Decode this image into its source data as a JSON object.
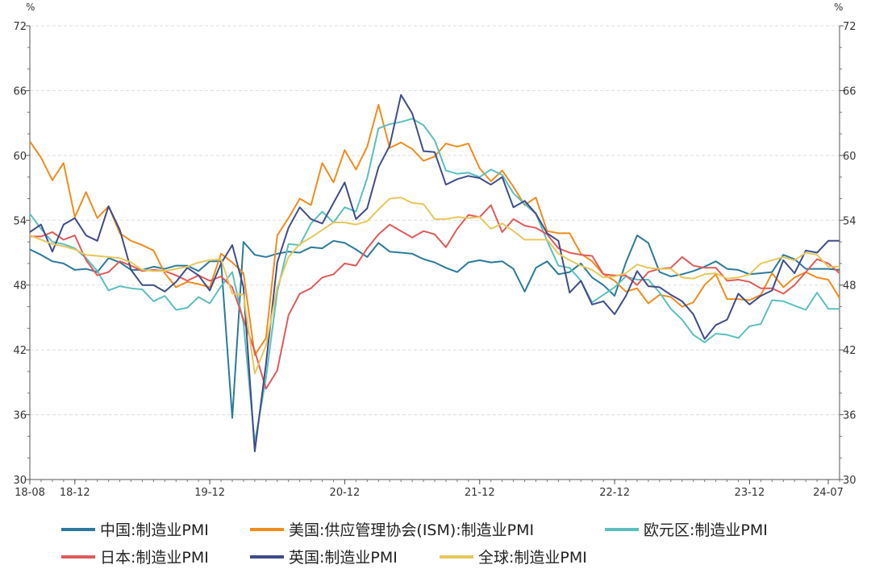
{
  "chart_data": {
    "type": "line",
    "title": "",
    "xlabel": "",
    "ylabel": "",
    "unit_left": "%",
    "unit_right": "%",
    "ylim": [
      30,
      72
    ],
    "y_ticks": [
      30,
      36,
      42,
      48,
      54,
      60,
      66,
      72
    ],
    "x_ticks": [
      "18-08",
      "18-12",
      "19-12",
      "20-12",
      "21-12",
      "22-12",
      "23-12",
      "24-07"
    ],
    "x_start": "2018-08",
    "x_end": "2024-07",
    "grid": "horizontal dashed",
    "legend_position": "bottom",
    "series": [
      {
        "name": "中国:制造业PMI",
        "color": "#2a7a9b",
        "values": [
          51.3,
          50.8,
          50.2,
          50.0,
          49.4,
          49.5,
          49.2,
          50.5,
          50.1,
          49.4,
          49.4,
          49.7,
          49.5,
          49.8,
          49.8,
          49.3,
          50.2,
          50.2,
          35.7,
          52.0,
          50.8,
          50.6,
          50.9,
          51.1,
          51.0,
          51.5,
          51.4,
          52.1,
          51.9,
          51.3,
          50.6,
          51.9,
          51.1,
          51.0,
          50.9,
          50.4,
          50.1,
          49.6,
          49.2,
          50.1,
          50.3,
          50.1,
          50.2,
          49.5,
          47.4,
          49.6,
          50.2,
          49.0,
          49.2,
          50.0,
          48.7,
          48.0,
          47.0,
          50.1,
          52.6,
          51.9,
          49.2,
          48.8,
          49.0,
          49.3,
          49.7,
          50.2,
          49.5,
          49.4,
          49.0,
          49.1,
          49.2,
          50.8,
          50.4,
          49.5,
          49.5,
          49.5,
          49.4
        ],
        "name_note": ""
      },
      {
        "name": "美国:供应管理协会(ISM):制造业PMI",
        "color": "#f08c1c",
        "values": [
          61.3,
          59.8,
          57.7,
          59.3,
          54.3,
          56.6,
          54.2,
          55.3,
          52.8,
          52.1,
          51.7,
          51.2,
          49.1,
          47.8,
          48.3,
          48.1,
          47.8,
          50.9,
          50.1,
          49.1,
          41.5,
          43.1,
          52.6,
          54.2,
          56.0,
          55.4,
          59.3,
          57.5,
          60.5,
          58.7,
          60.8,
          64.7,
          60.7,
          61.2,
          60.6,
          59.5,
          59.9,
          61.1,
          60.8,
          61.1,
          58.8,
          57.6,
          58.6,
          57.1,
          55.4,
          56.1,
          53.0,
          52.8,
          52.8,
          50.9,
          50.2,
          49.0,
          48.4,
          47.4,
          47.7,
          46.3,
          47.1,
          46.9,
          46.0,
          46.4,
          48.0,
          49.0,
          46.7,
          46.7,
          46.6,
          47.1,
          49.1,
          47.8,
          48.7,
          49.2,
          48.7,
          48.5,
          46.8
        ]
      },
      {
        "name": "欧元区:制造业PMI",
        "color": "#5bbfbe",
        "values": [
          54.6,
          53.2,
          52.0,
          51.8,
          51.4,
          50.5,
          49.3,
          47.5,
          47.9,
          47.7,
          47.6,
          46.5,
          47.0,
          45.7,
          45.9,
          46.9,
          46.3,
          47.9,
          49.2,
          44.5,
          33.4,
          39.4,
          47.4,
          51.8,
          51.7,
          53.7,
          54.8,
          53.8,
          55.2,
          54.8,
          57.9,
          62.5,
          62.9,
          63.1,
          63.4,
          62.8,
          61.4,
          58.6,
          58.3,
          58.4,
          58.0,
          58.7,
          58.2,
          56.5,
          55.5,
          54.6,
          52.1,
          49.8,
          49.6,
          48.4,
          46.4,
          47.1,
          47.8,
          48.8,
          48.5,
          48.5,
          47.3,
          45.8,
          44.8,
          43.4,
          42.7,
          43.5,
          43.4,
          43.1,
          44.2,
          44.4,
          46.6,
          46.5,
          46.1,
          45.7,
          47.3,
          45.8,
          45.8
        ]
      },
      {
        "name": "日本:制造业PMI",
        "color": "#e05a5a",
        "values": [
          52.5,
          52.5,
          52.9,
          52.2,
          52.6,
          50.3,
          48.9,
          49.2,
          50.2,
          49.8,
          49.3,
          49.4,
          49.3,
          48.9,
          48.4,
          48.9,
          48.4,
          48.8,
          47.8,
          44.8,
          41.9,
          38.4,
          40.1,
          45.2,
          47.2,
          47.7,
          48.7,
          49.0,
          50.0,
          49.8,
          51.4,
          52.7,
          53.6,
          53.0,
          52.4,
          53.0,
          52.7,
          51.5,
          53.2,
          54.5,
          54.3,
          55.4,
          52.9,
          54.1,
          53.5,
          53.3,
          52.7,
          51.4,
          51.0,
          50.8,
          50.7,
          49.0,
          48.9,
          48.9,
          48.0,
          49.2,
          49.5,
          49.6,
          50.6,
          49.8,
          49.6,
          49.6,
          48.4,
          48.5,
          48.3,
          47.7,
          47.7,
          47.2,
          48.0,
          49.2,
          50.4,
          50.0,
          49.1
        ]
      },
      {
        "name": "英国:制造业PMI",
        "color": "#3f4c8a",
        "values": [
          52.9,
          53.6,
          51.1,
          53.6,
          54.2,
          52.6,
          52.1,
          55.3,
          53.1,
          49.4,
          48.0,
          48.0,
          47.4,
          48.3,
          49.6,
          48.9,
          47.5,
          50.0,
          51.7,
          47.8,
          32.6,
          40.7,
          50.1,
          53.3,
          55.2,
          54.1,
          53.7,
          55.6,
          57.5,
          54.1,
          55.1,
          58.9,
          60.9,
          65.6,
          63.9,
          60.4,
          60.3,
          57.3,
          57.8,
          58.1,
          57.9,
          57.3,
          58.0,
          55.2,
          55.8,
          54.6,
          52.8,
          52.1,
          47.3,
          48.4,
          46.2,
          46.5,
          45.3,
          47.0,
          49.3,
          47.9,
          47.8,
          47.1,
          46.5,
          45.3,
          43.0,
          44.3,
          44.8,
          47.2,
          46.2,
          47.0,
          47.5,
          50.3,
          49.1,
          51.2,
          51.0,
          52.1,
          52.1
        ]
      },
      {
        "name": "全球:制造业PMI",
        "color": "#e6c75a",
        "values": [
          52.6,
          52.2,
          51.8,
          51.6,
          51.3,
          50.8,
          50.7,
          50.6,
          50.5,
          50.1,
          49.4,
          49.3,
          49.3,
          49.5,
          49.7,
          50.1,
          50.3,
          50.4,
          47.2,
          47.1,
          39.8,
          42.4,
          47.8,
          50.6,
          51.8,
          52.4,
          53.1,
          53.8,
          53.8,
          53.6,
          53.9,
          55.0,
          56.0,
          56.1,
          55.6,
          55.5,
          54.1,
          54.1,
          54.3,
          54.2,
          54.3,
          53.2,
          53.7,
          53.0,
          52.2,
          52.2,
          52.2,
          50.9,
          50.3,
          49.8,
          49.4,
          48.7,
          48.8,
          49.1,
          49.9,
          49.6,
          49.5,
          49.5,
          48.7,
          48.6,
          49.0,
          49.1,
          48.6,
          48.7,
          49.0,
          50.0,
          50.3,
          50.6,
          50.3,
          51.0,
          50.8,
          49.7,
          49.7
        ]
      }
    ]
  }
}
